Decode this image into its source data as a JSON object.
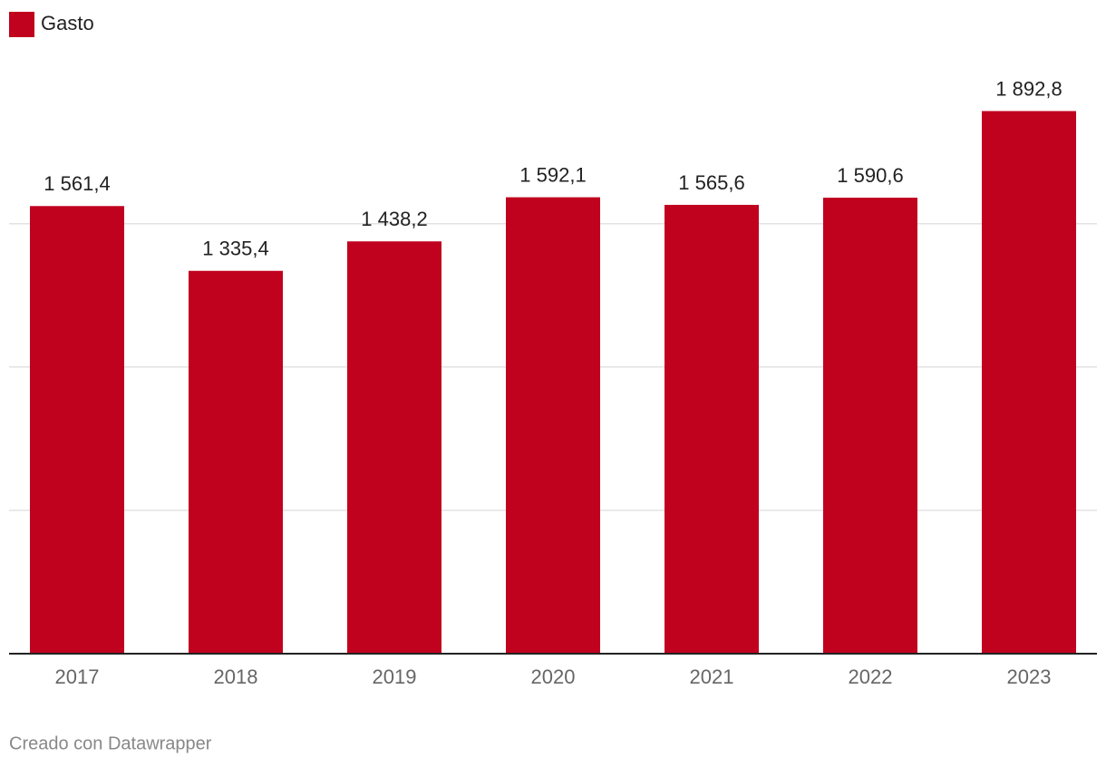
{
  "chart_data": {
    "type": "bar",
    "categories": [
      "2017",
      "2018",
      "2019",
      "2020",
      "2021",
      "2022",
      "2023"
    ],
    "series": [
      {
        "name": "Gasto",
        "color": "#c0021f",
        "values": [
          1561.4,
          1335.4,
          1438.2,
          1592.1,
          1565.6,
          1590.6,
          1892.8
        ],
        "value_labels": [
          "1 561,4",
          "1 335,4",
          "1 438,2",
          "1 592,1",
          "1 565,6",
          "1 590,6",
          "1 892,8"
        ]
      }
    ],
    "ylim": [
      0,
      2000
    ],
    "yticks": [
      0,
      500,
      1000,
      1500
    ],
    "grid": true,
    "credit": "Creado con Datawrapper"
  }
}
